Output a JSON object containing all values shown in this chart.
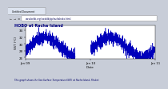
{
  "title": "HOBO at Racha Island",
  "xlabel": "Date",
  "ylabel": "SST (°C)",
  "yticks": [
    26,
    28,
    30,
    32,
    34
  ],
  "ylim": [
    25.5,
    35.5
  ],
  "xtick_labels": [
    "Jan 09",
    "Jan 10",
    "Jan 11"
  ],
  "xtick_pos": [
    0,
    365,
    730
  ],
  "line_color": "#0000bb",
  "line_width": 0.35,
  "bg_color": "#c8cdd8",
  "plot_bg": "#ffffff",
  "caption": "This graph shows the Sea Surface Temperature(SST) at Racha Island, Phuket.",
  "title_color": "#000080",
  "caption_color": "#000066",
  "browser_tab_color": "#d0d8e8",
  "browser_bar_color": "#e0e4ec",
  "n_points": 2000,
  "seed": 42,
  "xlim": [
    0,
    730
  ],
  "gap_start": 280,
  "gap_end": 368,
  "base_sst": 29.0,
  "seasonal_amp": 2.8,
  "noise_amp": 0.9
}
